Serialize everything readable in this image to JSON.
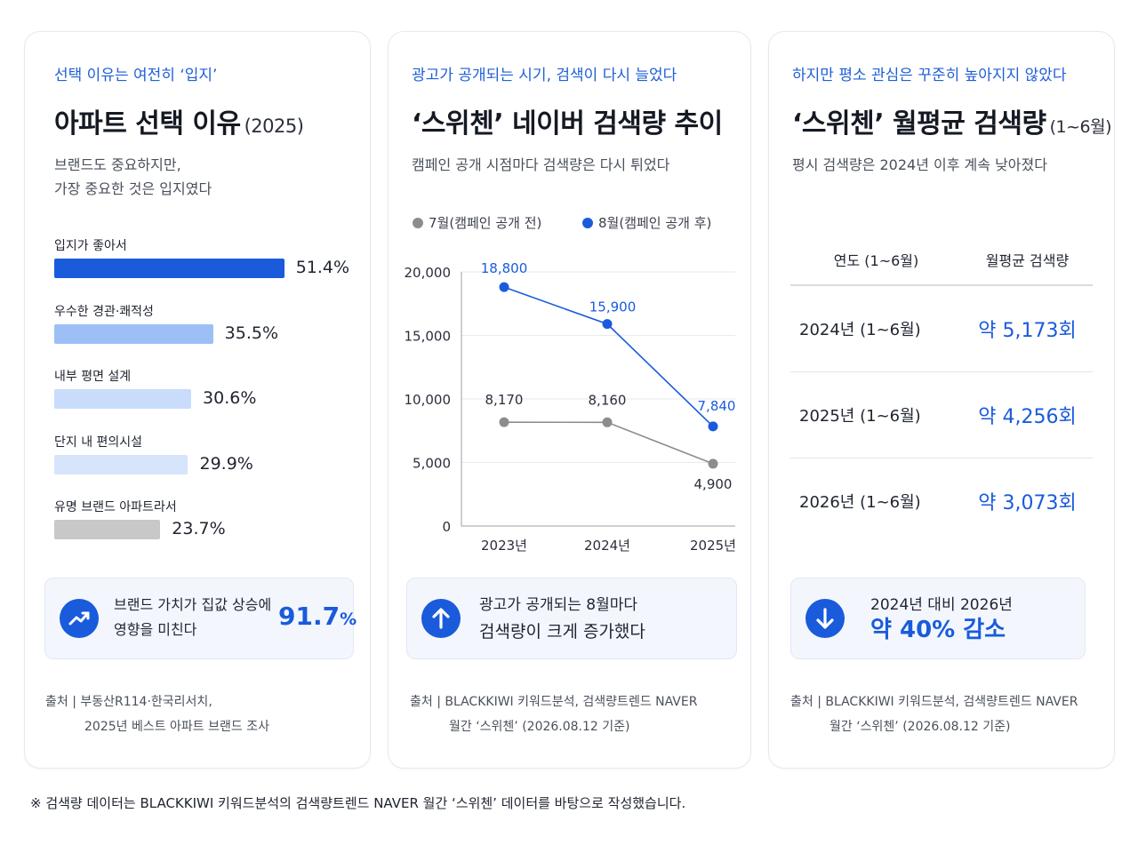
{
  "card1": {
    "eyebrow": "선택 이유는 여전히 ‘입지’",
    "title": "아파트 선택 이유",
    "title_suffix": "(2025)",
    "subtitle": "브랜드도 중요하지만,\n가장 중요한 것은 입지였다",
    "callout_text_line1": "브랜드 가치가 집값 상승에",
    "callout_text_line2": "영향을 미친다",
    "callout_value": "91.7",
    "callout_unit": "%",
    "callout_icon": "trending-up-icon",
    "source_line1": "출처 | 부동산R114·한국리서치,",
    "source_line2": "2025년 베스트 아파트 브랜드 조사"
  },
  "card2": {
    "eyebrow": "광고가 공개되는 시기, 검색이 다시 늘었다",
    "title": "‘스위첸’ 네이버 검색량 추이",
    "subtitle": "캠페인 공개 시점마다 검색량은 다시 튀었다",
    "callout_text_line1": "광고가 공개되는 8월마다",
    "callout_text_line2": "검색량이 크게 증가했다",
    "callout_icon": "arrow-up-icon",
    "source_line1": "출처 | BLACKKIWI 키워드분석, 검색량트렌드 NAVER",
    "source_line2": "월간 ‘스위첸’ (2026.08.12 기준)"
  },
  "card3": {
    "eyebrow": "하지만 평소 관심은 꾸준히 높아지지 않았다",
    "title": "‘스위첸’ 월평균 검색량",
    "title_suffix": "(1~6월)",
    "subtitle": "평시 검색량은 2024년 이후 계속 낮아졌다",
    "table_headers": [
      "연도 (1~6월)",
      "월평균 검색량"
    ],
    "table_rows": [
      {
        "year": "2024년 (1~6월)",
        "value": "약 5,173회"
      },
      {
        "year": "2025년 (1~6월)",
        "value": "약 4,256회"
      },
      {
        "year": "2026년 (1~6월)",
        "value": "약 3,073회"
      }
    ],
    "callout_text_line1": "2024년 대비 2026년",
    "callout_text_line2": "약 40% 감소",
    "callout_icon": "arrow-down-icon",
    "source_line1": "출처 | BLACKKIWI 키워드분석, 검색량트렌드 NAVER",
    "source_line2": "월간 ‘스위첸’ (2026.08.12 기준)"
  },
  "footnote": "※ 검색량 데이터는 BLACKKIWI 키워드분석의 검색량트렌드 NAVER 월간 ‘스위첸’ 데이터를 바탕으로 작성했습니다.",
  "colors": {
    "accent": "#1a5bdc",
    "bar_primary": "#1a5bdc",
    "bar_light_1": "#9cc0f6",
    "bar_light_2": "#c9dcfb",
    "bar_light_3": "#d6e4fc",
    "bar_gray": "#c8c8c8",
    "series_gray": "#8c8c8c"
  },
  "chart_data": [
    {
      "type": "bar",
      "orientation": "horizontal",
      "categories": [
        "입지가 좋아서",
        "우수한 경관·쾌적성",
        "내부 평면 설계",
        "단지 내 편의시설",
        "유명 브랜드 아파트라서"
      ],
      "values": [
        51.4,
        35.5,
        30.6,
        29.9,
        23.7
      ],
      "value_labels": [
        "51.4%",
        "35.5%",
        "30.6%",
        "29.9%",
        "23.7%"
      ],
      "bar_colors": [
        "#1a5bdc",
        "#9cc0f6",
        "#c9dcfb",
        "#d6e4fc",
        "#c8c8c8"
      ],
      "xlim": [
        0,
        60
      ]
    },
    {
      "type": "line",
      "x": [
        "2023년",
        "2024년",
        "2025년"
      ],
      "series": [
        {
          "name": "7월(캠페인 공개 전)",
          "values": [
            8170,
            8160,
            4900
          ],
          "labels": [
            "8,170",
            "8,160",
            "4,900"
          ],
          "color": "#8c8c8c"
        },
        {
          "name": "8월(캠페인 공개 후)",
          "values": [
            18800,
            15900,
            7840
          ],
          "labels": [
            "18,800",
            "15,900",
            "7,840"
          ],
          "color": "#1a5bdc"
        }
      ],
      "y_ticks": [
        "20,000",
        "15,000",
        "10,000",
        "5,000",
        "0"
      ],
      "ylim": [
        0,
        20000
      ],
      "grid": true,
      "legend": "top"
    }
  ]
}
